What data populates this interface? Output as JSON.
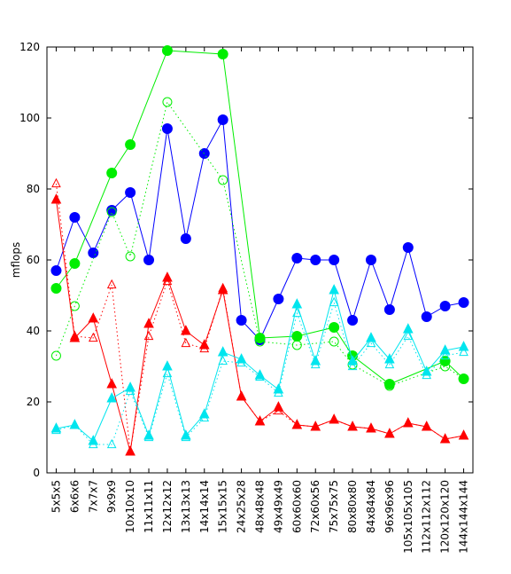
{
  "chart_data": {
    "type": "line",
    "title": "",
    "xlabel": "",
    "ylabel": "mflops",
    "ylim": [
      0,
      120
    ],
    "yticks": [
      0,
      20,
      40,
      60,
      80,
      100,
      120
    ],
    "grid": false,
    "categories": [
      "5x5x5",
      "6x6x6",
      "7x7x7",
      "9x9x9",
      "10x10x10",
      "11x11x11",
      "12x12x12",
      "13x13x13",
      "14x14x14",
      "15x15x15",
      "24x25x28",
      "48x48x48",
      "49x49x49",
      "60x60x60",
      "72x60x56",
      "75x75x75",
      "80x80x80",
      "84x84x84",
      "96x96x96",
      "105x105x105",
      "112x112x112",
      "120x120x120",
      "144x144x144"
    ],
    "series": [
      {
        "color": "#0000ff",
        "marker": "filled-circle",
        "dash": "solid",
        "values": [
          57,
          72,
          62,
          74,
          79,
          60,
          97,
          66,
          90,
          99.5,
          43,
          37.5,
          49,
          60.5,
          60,
          60,
          43,
          60,
          46,
          63.5,
          44,
          47,
          48
        ]
      },
      {
        "color": "#00ee00",
        "marker": "filled-circle",
        "dash": "solid",
        "values": [
          52,
          59,
          null,
          84.5,
          92.5,
          null,
          119,
          null,
          null,
          118,
          null,
          38,
          null,
          38.5,
          null,
          41,
          33,
          null,
          25,
          null,
          null,
          31.5,
          26.5
        ]
      },
      {
        "color": "#00ee00",
        "marker": "open-circle",
        "dash": "dotted",
        "values": [
          33,
          47,
          null,
          73.5,
          61,
          null,
          104.5,
          null,
          null,
          82.5,
          null,
          37,
          null,
          36,
          null,
          37,
          30.5,
          null,
          24.5,
          null,
          null,
          30,
          26.5
        ]
      },
      {
        "color": "#ff0000",
        "marker": "filled-triangle",
        "dash": "solid",
        "values": [
          77,
          38,
          43.5,
          25,
          6,
          42,
          55,
          40,
          36,
          51.5,
          21.5,
          14.5,
          18.5,
          13.5,
          13,
          15,
          13,
          12.5,
          11,
          14,
          13,
          9.5,
          10.5
        ]
      },
      {
        "color": "#ff0000",
        "marker": "open-triangle",
        "dash": "dotted",
        "values": [
          81.5,
          38.5,
          38,
          53,
          6,
          38.5,
          54,
          36.5,
          35,
          52,
          21.5,
          14.5,
          17.5,
          13.5,
          13,
          15,
          13,
          12.5,
          11,
          14,
          13,
          9.5,
          10.5
        ]
      },
      {
        "color": "#00e5ee",
        "marker": "filled-triangle",
        "dash": "solid",
        "values": [
          12.5,
          13.5,
          9,
          21,
          24,
          10.5,
          30,
          10.5,
          16.5,
          34,
          32,
          27.5,
          23.5,
          47.5,
          31.5,
          51.5,
          31.5,
          38,
          32,
          40.5,
          28.5,
          34.5,
          35.5
        ]
      },
      {
        "color": "#00e5ee",
        "marker": "open-triangle",
        "dash": "dotted",
        "values": [
          12,
          13.5,
          8,
          8,
          23,
          10,
          28,
          10,
          15.5,
          31.5,
          31,
          27,
          22.5,
          45,
          30.5,
          48,
          30,
          36.5,
          30.5,
          38.5,
          27.5,
          33,
          34
        ]
      }
    ]
  }
}
